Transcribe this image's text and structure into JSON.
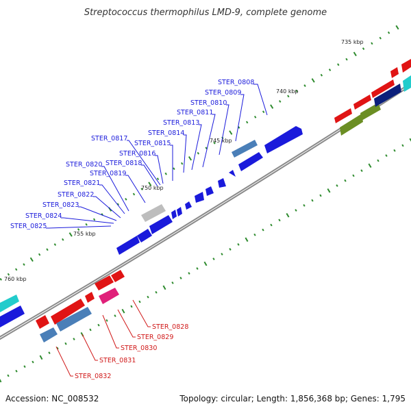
{
  "title": "Streptococcus thermophilus LMD-9, complete genome",
  "footer": {
    "accession": "Accession: NC_008532",
    "summary": "Topology: circular; Length: 1,856,368 bp; Genes: 1,795"
  },
  "scale_labels": [
    "735 kbp",
    "740 kbp",
    "745 kbp",
    "750 kbp",
    "755 kbp",
    "760 kbp"
  ],
  "genes_forward": [
    "STER_0808",
    "STER_0809",
    "STER_0810",
    "STER_0811",
    "STER_0813",
    "STER_0814",
    "STER_0815",
    "STER_0816",
    "STER_0817",
    "STER_0818",
    "STER_0819",
    "STER_0820",
    "STER_0821",
    "STER_0822",
    "STER_0823",
    "STER_0824",
    "STER_0825"
  ],
  "genes_reverse": [
    "STER_0828",
    "STER_0829",
    "STER_0830",
    "STER_0831",
    "STER_0832"
  ],
  "colors": {
    "forward_strand": "#1a1adb",
    "reverse_strand": "#e01414",
    "backbone": "#8a8a8a",
    "ticks": "#2e8b2e",
    "steelblue": "#4a7fb8",
    "magenta": "#e0207a",
    "olive": "#6b8e23",
    "navy": "#0b1f7a",
    "cyan": "#22cccc",
    "grey": "#bdbdbd"
  }
}
